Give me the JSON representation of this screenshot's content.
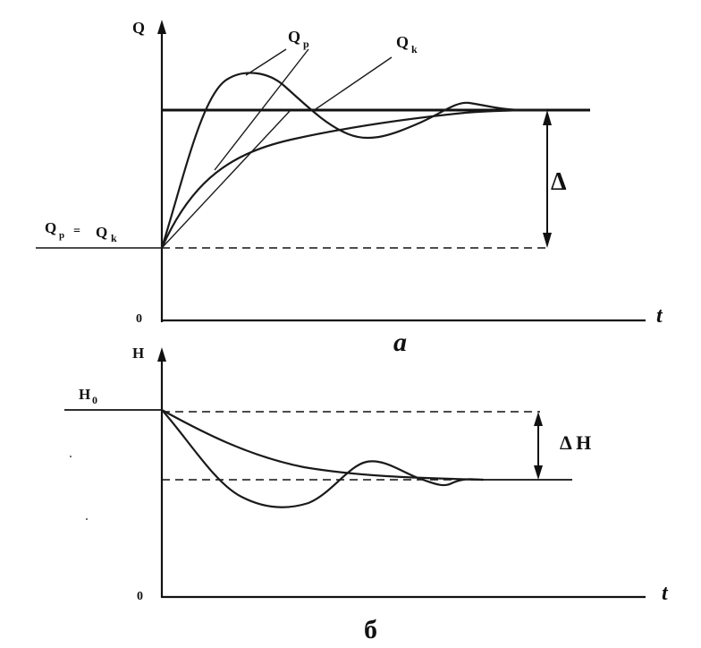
{
  "top_panel": {
    "y_axis_label": "Q",
    "x_axis_label": "t",
    "origin_label": "0",
    "panel_label": "a",
    "curve_label_qp_main": "Q",
    "curve_label_qp_sub": "p",
    "curve_label_qk_main": "Q",
    "curve_label_qk_sub": "k",
    "initial_eq": {
      "left_main": "Q",
      "left_sub": "p",
      "equals": "=",
      "right_main": "Q",
      "right_sub": "k"
    },
    "delta_label": "Δ"
  },
  "bottom_panel": {
    "y_axis_label": "H",
    "x_axis_label": "t",
    "origin_label": "0",
    "panel_label": "б",
    "h0_main": "H",
    "h0_sub": "0",
    "delta_label": "Δ H"
  }
}
